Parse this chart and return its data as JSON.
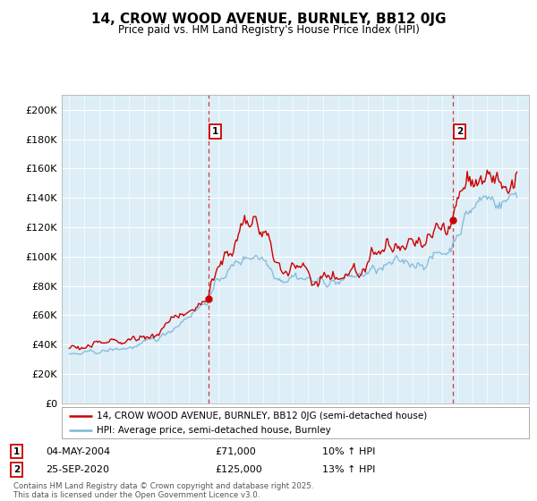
{
  "title": "14, CROW WOOD AVENUE, BURNLEY, BB12 0JG",
  "subtitle": "Price paid vs. HM Land Registry's House Price Index (HPI)",
  "ylabel_ticks": [
    "£0",
    "£20K",
    "£40K",
    "£60K",
    "£80K",
    "£100K",
    "£120K",
    "£140K",
    "£160K",
    "£180K",
    "£200K"
  ],
  "ytick_values": [
    0,
    20000,
    40000,
    60000,
    80000,
    100000,
    120000,
    140000,
    160000,
    180000,
    200000
  ],
  "ylim": [
    0,
    210000
  ],
  "sale1_x": 2004.34,
  "sale1_y": 71000,
  "sale1_label": "1",
  "sale1_date": "04-MAY-2004",
  "sale1_price": "£71,000",
  "sale1_hpi": "10% ↑ HPI",
  "sale2_x": 2020.73,
  "sale2_y": 125000,
  "sale2_label": "2",
  "sale2_date": "25-SEP-2020",
  "sale2_price": "£125,000",
  "sale2_hpi": "13% ↑ HPI",
  "hpi_color": "#7fb8d8",
  "sale_color": "#cc0000",
  "vline_color": "#cc0000",
  "plot_bg": "#ddeef7",
  "legend_label_sale": "14, CROW WOOD AVENUE, BURNLEY, BB12 0JG (semi-detached house)",
  "legend_label_hpi": "HPI: Average price, semi-detached house, Burnley",
  "footer": "Contains HM Land Registry data © Crown copyright and database right 2025.\nThis data is licensed under the Open Government Licence v3.0.",
  "xmin": 1994.5,
  "xmax": 2025.8
}
